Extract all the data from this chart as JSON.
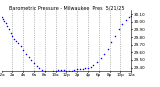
{
  "title": "Barometric Pressure - Milwaukee  Pres  5/21/25",
  "background_color": "#ffffff",
  "dot_color": "#0000ff",
  "grid_color": "#888888",
  "x_min": 0,
  "x_max": 1440,
  "y_min": 29.35,
  "y_max": 30.15,
  "y_ticks": [
    29.4,
    29.5,
    29.6,
    29.7,
    29.8,
    29.9,
    30.0,
    30.1
  ],
  "vgrid_positions": [
    120,
    240,
    360,
    480,
    600,
    720,
    840,
    960,
    1080,
    1200,
    1320
  ],
  "data_x": [
    0,
    15,
    30,
    45,
    60,
    80,
    100,
    120,
    140,
    160,
    180,
    210,
    240,
    270,
    300,
    330,
    360,
    390,
    420,
    450,
    480,
    510,
    540,
    570,
    600,
    630,
    660,
    690,
    720,
    750,
    780,
    810,
    840,
    870,
    900,
    930,
    960,
    990,
    1020,
    1060,
    1100,
    1140,
    1180,
    1220,
    1260,
    1300,
    1340,
    1380,
    1420,
    1440
  ],
  "data_y": [
    30.07,
    30.04,
    30.01,
    29.98,
    29.95,
    29.9,
    29.86,
    29.82,
    29.78,
    29.75,
    29.72,
    29.68,
    29.63,
    29.58,
    29.54,
    29.5,
    29.46,
    29.42,
    29.39,
    29.37,
    29.35,
    29.34,
    29.34,
    29.35,
    29.36,
    29.37,
    29.37,
    29.37,
    29.36,
    29.36,
    29.36,
    29.37,
    29.38,
    29.38,
    29.38,
    29.39,
    29.4,
    29.41,
    29.43,
    29.47,
    29.52,
    29.58,
    29.65,
    29.73,
    29.82,
    29.9,
    29.97,
    30.02,
    30.06,
    30.08
  ],
  "x_tick_positions": [
    0,
    120,
    240,
    360,
    480,
    600,
    720,
    840,
    960,
    1080,
    1200,
    1320,
    1440
  ],
  "x_tick_labels": [
    "12a",
    "2a",
    "4a",
    "6a",
    "8a",
    "10a",
    "12p",
    "2p",
    "4p",
    "6p",
    "8p",
    "10p",
    "12a"
  ],
  "title_fontsize": 3.5,
  "tick_fontsize": 3.0,
  "y_tick_fontsize": 3.0
}
